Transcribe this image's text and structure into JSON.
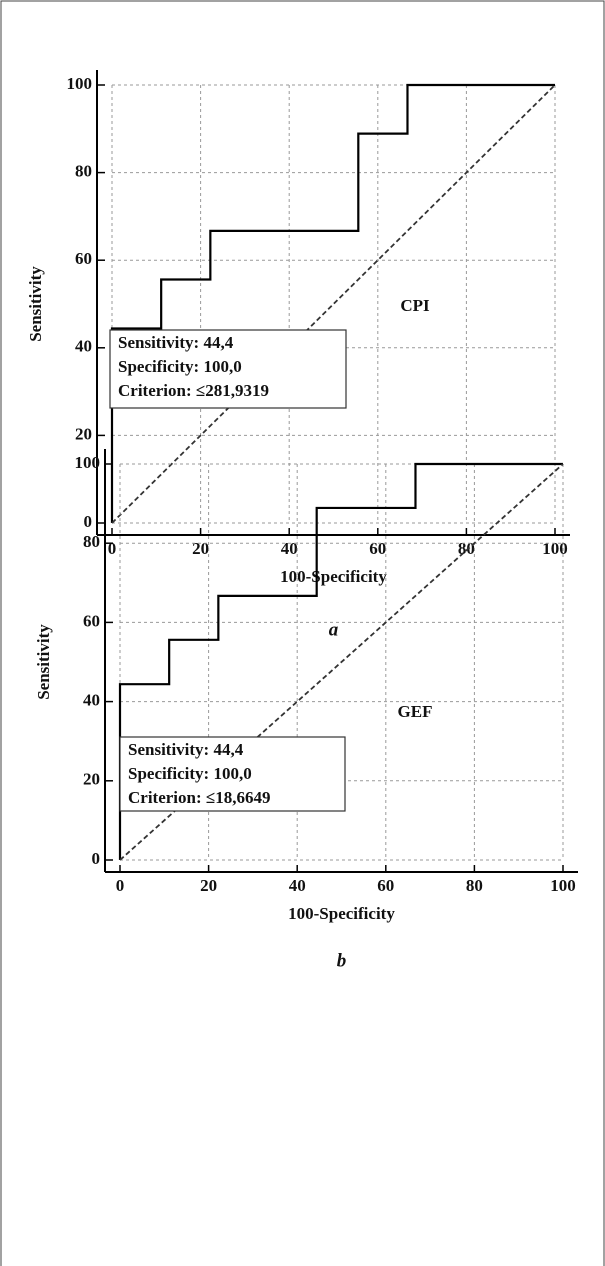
{
  "chart_data": [
    {
      "type": "line",
      "x_label": "100-Specificity",
      "y_label": "Sensitivity",
      "caption": "a",
      "label": "CPI",
      "annotation": [
        "Sensitivity: 44,4",
        "Specificity: 100,0",
        "Criterion: ≤281,9319"
      ],
      "xlim": [
        0,
        100
      ],
      "ylim": [
        0,
        100
      ],
      "xticks": [
        0,
        20,
        40,
        60,
        80,
        100
      ],
      "yticks": [
        0,
        20,
        40,
        60,
        80,
        100
      ],
      "grid": true,
      "series": [
        {
          "color": "#000000",
          "dashed": false,
          "x": [
            0,
            0,
            11.1,
            11.1,
            22.2,
            22.2,
            55.6,
            55.6,
            66.7,
            66.7,
            100
          ],
          "values": [
            0,
            44.4,
            44.4,
            55.6,
            55.6,
            66.7,
            66.7,
            88.9,
            88.9,
            100,
            100
          ]
        },
        {
          "color": "#333333",
          "dashed": true,
          "x": [
            0,
            100
          ],
          "values": [
            0,
            100
          ]
        }
      ]
    },
    {
      "type": "line",
      "x_label": "100-Specificity",
      "y_label": "Sensitivity",
      "caption": "b",
      "label": "GEF",
      "annotation": [
        "Sensitivity: 44,4",
        "Specificity: 100,0",
        "Criterion: ≤18,6649"
      ],
      "xlim": [
        0,
        100
      ],
      "ylim": [
        0,
        100
      ],
      "xticks": [
        0,
        20,
        40,
        60,
        80,
        100
      ],
      "yticks": [
        0,
        20,
        40,
        60,
        80,
        100
      ],
      "grid": true,
      "series": [
        {
          "color": "#000000",
          "dashed": false,
          "x": [
            0,
            0,
            11.1,
            11.1,
            22.2,
            22.2,
            44.4,
            44.4,
            66.7,
            66.7,
            100
          ],
          "values": [
            0,
            44.4,
            44.4,
            55.6,
            55.6,
            66.7,
            66.7,
            88.9,
            88.9,
            100,
            100
          ]
        },
        {
          "color": "#333333",
          "dashed": true,
          "x": [
            0,
            100
          ],
          "values": [
            0,
            100
          ]
        }
      ]
    }
  ]
}
